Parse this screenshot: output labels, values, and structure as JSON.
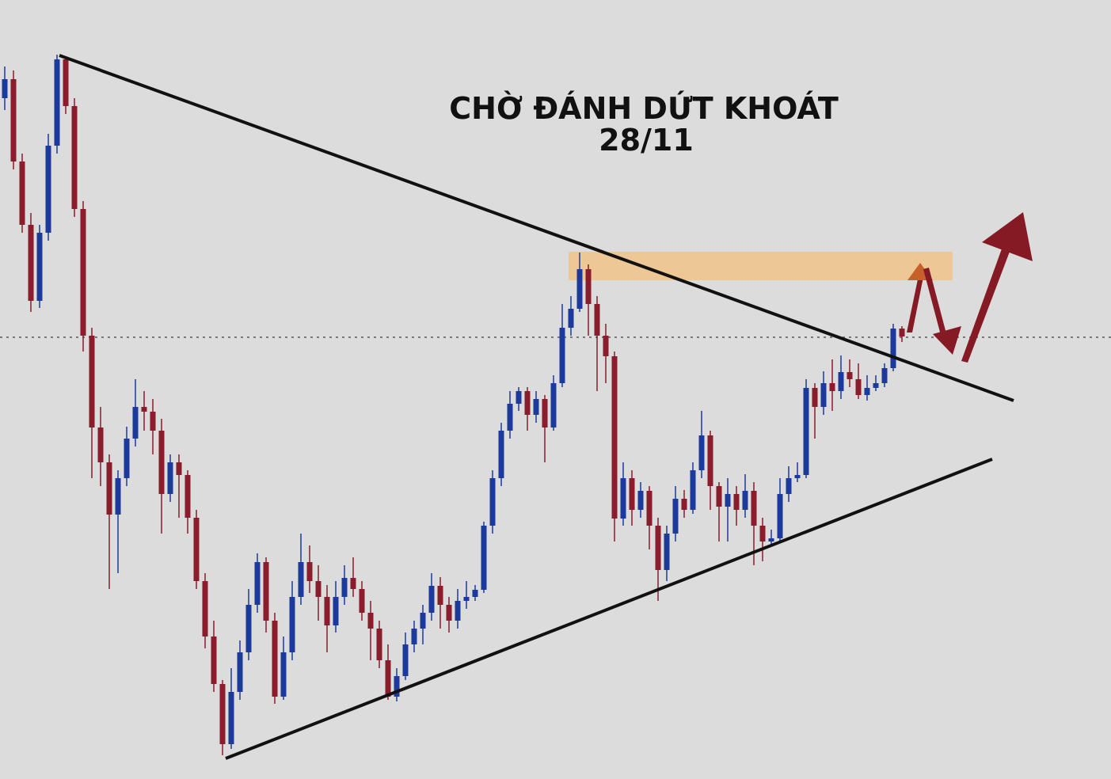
{
  "chart_data": {
    "type": "candlestick",
    "title": "CHỜ ĐÁNH DỨT KHOÁT",
    "subtitle": "28/11",
    "ylim": [
      0,
      984
    ],
    "up_color": "#1c3a9c",
    "down_color": "#8a1c2c",
    "open": [
      860,
      884,
      780,
      700,
      604,
      690,
      800,
      909,
      850,
      720,
      560,
      444,
      400,
      334,
      380,
      430,
      470,
      464,
      440,
      360,
      400,
      384,
      330,
      250,
      180,
      120,
      44,
      110,
      160,
      220,
      274,
      200,
      104,
      160,
      230,
      274,
      250,
      230,
      194,
      230,
      254,
      240,
      210,
      190,
      150,
      104,
      130,
      170,
      190,
      210,
      244,
      220,
      200,
      225,
      230,
      239,
      320,
      380,
      440,
      474,
      490,
      460,
      480,
      444,
      500,
      570,
      594,
      644,
      600,
      560,
      534,
      329,
      380,
      340,
      364,
      320,
      264,
      310,
      354,
      340,
      390,
      434,
      370,
      344,
      360,
      340,
      364,
      320,
      300,
      304,
      360,
      380,
      384,
      494,
      470,
      500,
      490,
      514,
      505,
      485,
      494,
      500,
      519,
      569
    ],
    "high": [
      900,
      895,
      790,
      715,
      700,
      815,
      915,
      912,
      860,
      730,
      570,
      470,
      410,
      390,
      445,
      505,
      490,
      480,
      455,
      410,
      410,
      390,
      340,
      260,
      200,
      125,
      140,
      175,
      240,
      285,
      280,
      210,
      180,
      250,
      310,
      295,
      270,
      245,
      250,
      270,
      280,
      250,
      225,
      200,
      170,
      140,
      185,
      200,
      220,
      260,
      255,
      230,
      240,
      250,
      245,
      325,
      390,
      450,
      490,
      495,
      495,
      490,
      485,
      510,
      600,
      610,
      665,
      650,
      610,
      575,
      540,
      400,
      390,
      375,
      370,
      330,
      320,
      370,
      365,
      400,
      465,
      440,
      375,
      380,
      370,
      385,
      375,
      330,
      315,
      380,
      395,
      400,
      505,
      500,
      515,
      530,
      535,
      530,
      525,
      510,
      510,
      525,
      575,
      572
    ],
    "low": [
      845,
      770,
      690,
      590,
      595,
      680,
      790,
      840,
      710,
      540,
      380,
      370,
      240,
      260,
      370,
      420,
      440,
      410,
      310,
      350,
      330,
      310,
      240,
      165,
      110,
      30,
      38,
      100,
      150,
      210,
      185,
      95,
      100,
      150,
      220,
      235,
      200,
      160,
      185,
      220,
      230,
      200,
      150,
      140,
      100,
      98,
      125,
      160,
      170,
      200,
      190,
      185,
      190,
      215,
      225,
      235,
      310,
      370,
      430,
      465,
      440,
      450,
      400,
      440,
      495,
      560,
      590,
      560,
      490,
      500,
      300,
      320,
      320,
      330,
      290,
      225,
      250,
      300,
      330,
      335,
      380,
      340,
      300,
      300,
      320,
      330,
      270,
      275,
      295,
      300,
      350,
      375,
      380,
      430,
      460,
      465,
      480,
      495,
      480,
      478,
      490,
      495,
      515,
      552
    ],
    "close": [
      884,
      780,
      700,
      604,
      690,
      800,
      909,
      850,
      720,
      560,
      444,
      400,
      334,
      380,
      430,
      470,
      464,
      440,
      360,
      400,
      384,
      330,
      250,
      180,
      120,
      44,
      110,
      160,
      220,
      274,
      200,
      104,
      160,
      230,
      274,
      250,
      230,
      194,
      230,
      254,
      240,
      210,
      190,
      150,
      104,
      130,
      170,
      190,
      210,
      244,
      220,
      200,
      225,
      230,
      239,
      320,
      380,
      440,
      474,
      490,
      460,
      480,
      444,
      500,
      570,
      594,
      644,
      600,
      560,
      534,
      329,
      380,
      340,
      364,
      320,
      264,
      310,
      354,
      340,
      390,
      434,
      370,
      344,
      360,
      340,
      364,
      320,
      300,
      304,
      360,
      380,
      384,
      494,
      470,
      500,
      490,
      514,
      505,
      485,
      494,
      500,
      519,
      569,
      559
    ]
  }
}
